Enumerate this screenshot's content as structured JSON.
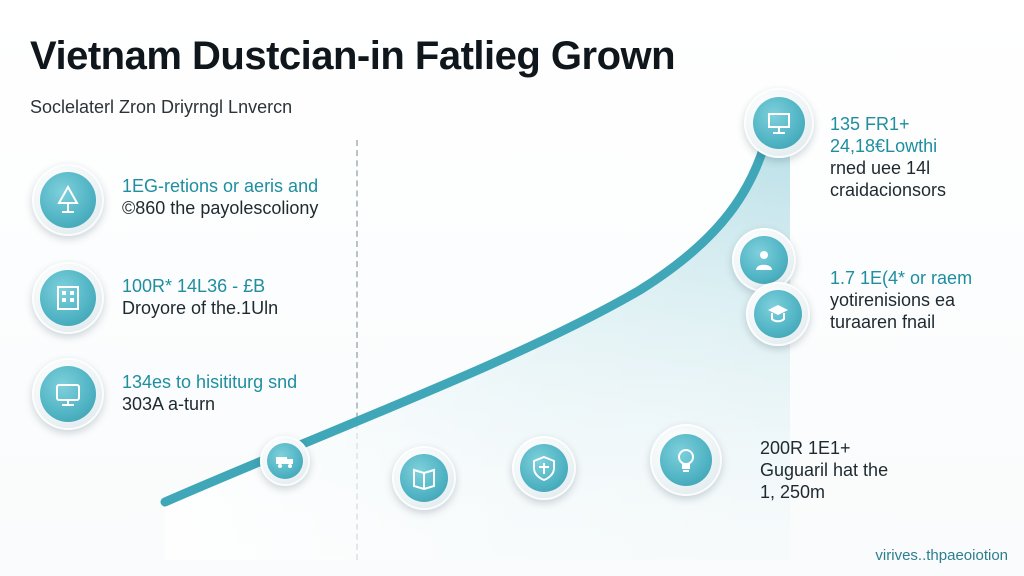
{
  "title": "Vietnam Dustcian-in Fatlieg Grown",
  "subtitle": "Soclelaterl Zron Driyrngl Lnvercn",
  "colors": {
    "accent": "#4fb3c3",
    "accent_dark": "#1e8ea0",
    "curve_fill": "#bfe2e8",
    "text": "#1f2a30"
  },
  "left_stats": [
    {
      "icon": "lamp-icon",
      "highlight": "1EG-retions or aeris and",
      "text": "©860 the payolescoliony"
    },
    {
      "icon": "building-icon",
      "highlight": "100R* 14L36 - £B",
      "text": "Droyore of the.1Uln"
    },
    {
      "icon": "monitor-icon",
      "highlight": "134es to hisititurg snd",
      "text": "303A a-turn"
    }
  ],
  "right_stats": [
    {
      "highlight": "135 FR1+",
      "text": [
        "24,18€Lowthi",
        "rned uee 14l",
        "craidacionsors"
      ]
    },
    {
      "highlight": "1.7 1E(4* or raem",
      "text": [
        "yotirenisions ea",
        "turaaren fnail"
      ]
    },
    {
      "highlight": "200R 1E1+",
      "text": [
        "Guguaril hat the",
        "1, 250m"
      ]
    }
  ],
  "curve_nodes": [
    {
      "icon": "truck-icon"
    },
    {
      "icon": "book-icon"
    },
    {
      "icon": "shield-icon"
    },
    {
      "icon": "lightbulb-icon"
    }
  ],
  "right_nodes": [
    {
      "icon": "presentation-icon"
    },
    {
      "icon": "teacher-icon"
    },
    {
      "icon": "student-icon"
    }
  ],
  "footer": "virives..thpaeoiotion"
}
